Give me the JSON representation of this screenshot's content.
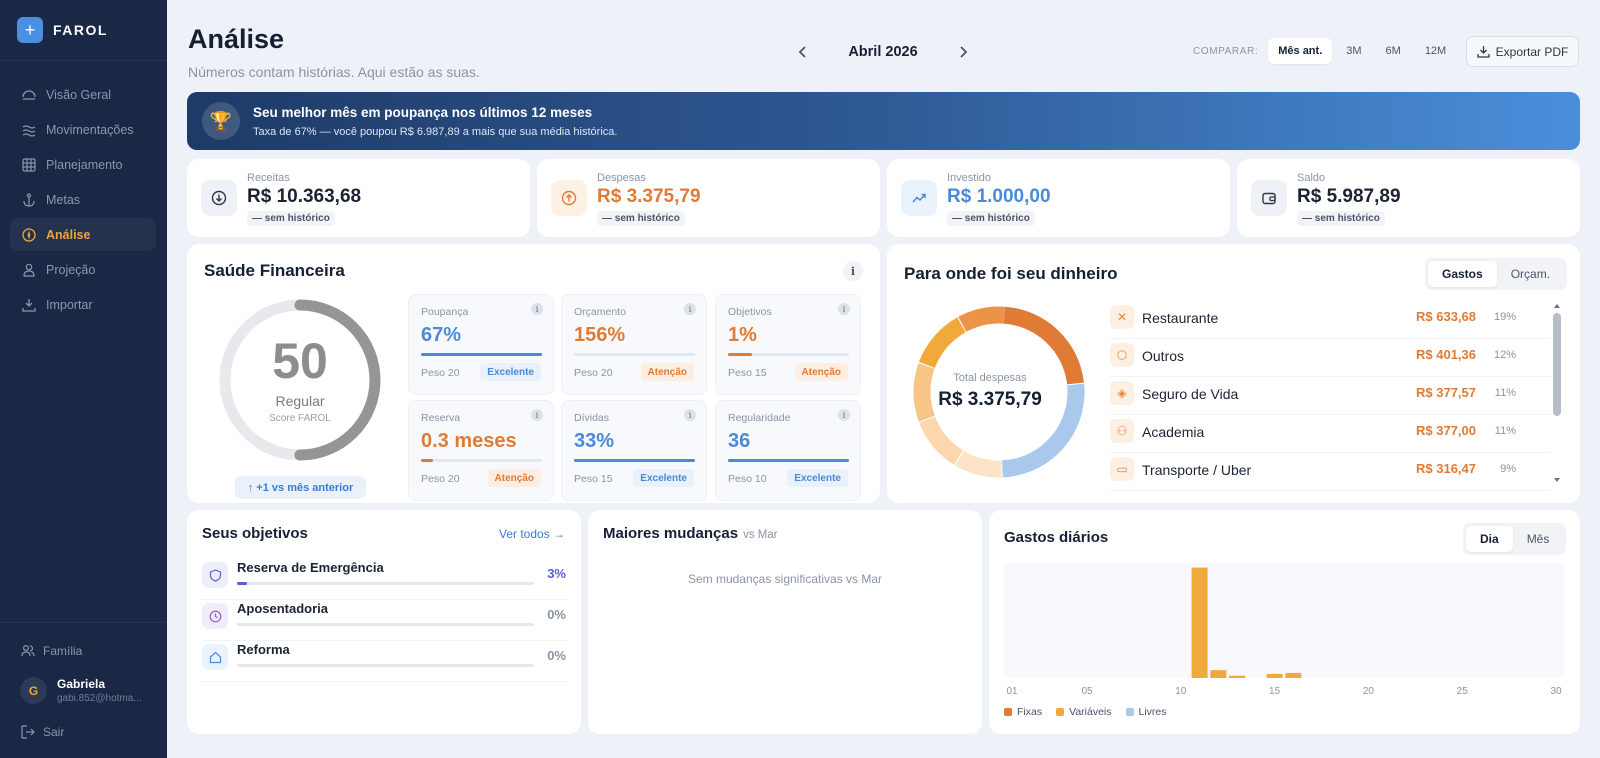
{
  "app": {
    "name": "FAROL"
  },
  "sidebar": {
    "items": [
      {
        "label": "Visão Geral",
        "icon": "dashboard-icon"
      },
      {
        "label": "Movimentações",
        "icon": "waves-icon"
      },
      {
        "label": "Planejamento",
        "icon": "grid-icon"
      },
      {
        "label": "Metas",
        "icon": "anchor-icon"
      },
      {
        "label": "Análise",
        "icon": "compass-icon",
        "active": true
      },
      {
        "label": "Projeção",
        "icon": "person-icon"
      },
      {
        "label": "Importar",
        "icon": "import-icon"
      }
    ],
    "family_label": "Família",
    "user": {
      "initial": "G",
      "name": "Gabriela",
      "email": "gabi.852@hotma..."
    },
    "logout_label": "Sair"
  },
  "header": {
    "title": "Análise",
    "subtitle": "Números contam histórias. Aqui estão as suas.",
    "month": "Abril 2026",
    "compare_label": "COMPARAR:",
    "compare_options": [
      "Mês ant.",
      "3M",
      "6M",
      "12M"
    ],
    "compare_selected": "Mês ant.",
    "export_label": "Exportar PDF"
  },
  "banner": {
    "title": "Seu melhor mês em poupança nos últimos 12 meses",
    "subtitle": "Taxa de 67% — você poupou R$ 6.987,89 a mais que sua média histórica."
  },
  "stats": [
    {
      "label": "Receitas",
      "value": "R$ 10.363,68",
      "history": "— sem histórico",
      "color": "#1b2333"
    },
    {
      "label": "Despesas",
      "value": "R$ 3.375,79",
      "history": "— sem histórico",
      "color": "#e07b36"
    },
    {
      "label": "Investido",
      "value": "R$ 1.000,00",
      "history": "— sem histórico",
      "color": "#4a8ad6"
    },
    {
      "label": "Saldo",
      "value": "R$ 5.987,89",
      "history": "— sem histórico",
      "color": "#1b2333"
    }
  ],
  "health": {
    "title": "Saúde Financeira",
    "info": "i",
    "score": "50",
    "score_fraction": 0.5,
    "score_label": "Regular",
    "score_sub": "Score FAROL",
    "diff": "↑ +1 vs mês anterior",
    "metrics": [
      {
        "label": "Poupança",
        "value": "67%",
        "weight": "Peso 20",
        "badge": "Excelente",
        "status": "good",
        "progress": 1.0
      },
      {
        "label": "Orçamento",
        "value": "156%",
        "weight": "Peso 20",
        "badge": "Atenção",
        "status": "warn",
        "progress": 0.0
      },
      {
        "label": "Objetivos",
        "value": "1%",
        "weight": "Peso 15",
        "badge": "Atenção",
        "status": "warn",
        "progress": 0.2
      },
      {
        "label": "Reserva",
        "value": "0.3 meses",
        "weight": "Peso 20",
        "badge": "Atenção",
        "status": "warn",
        "progress": 0.1
      },
      {
        "label": "Dívidas",
        "value": "33%",
        "weight": "Peso 15",
        "badge": "Excelente",
        "status": "good",
        "progress": 1.0
      },
      {
        "label": "Regularidade",
        "value": "36",
        "weight": "Peso 10",
        "badge": "Excelente",
        "status": "good",
        "progress": 1.0
      }
    ]
  },
  "spending": {
    "title": "Para onde foi seu dinheiro",
    "tabs": [
      "Gastos",
      "Orçam."
    ],
    "tab_selected": "Gastos",
    "total_label": "Total despesas",
    "total_value": "R$ 3.375,79",
    "categories": [
      {
        "name": "Restaurante",
        "value": "R$ 633,68",
        "pct": "19%",
        "icon": "utensils-icon"
      },
      {
        "name": "Outros",
        "value": "R$ 401,36",
        "pct": "12%",
        "icon": "box-icon"
      },
      {
        "name": "Seguro de Vida",
        "value": "R$ 377,57",
        "pct": "11%",
        "icon": "shield-icon"
      },
      {
        "name": "Academia",
        "value": "R$ 377,00",
        "pct": "11%",
        "icon": "dumbbell-icon"
      },
      {
        "name": "Transporte / Uber",
        "value": "R$ 316,47",
        "pct": "9%",
        "icon": "car-icon"
      }
    ]
  },
  "objectives": {
    "title": "Seus objetivos",
    "see_all": "Ver todos →",
    "items": [
      {
        "name": "Reserva de Emergência",
        "pct": "3%",
        "progress": 0.03,
        "icon": "shield-icon",
        "color": "#5b5fd6"
      },
      {
        "name": "Aposentadoria",
        "pct": "0%",
        "progress": 0.0,
        "icon": "clock-icon",
        "color": "#8a94a6"
      },
      {
        "name": "Reforma",
        "pct": "0%",
        "progress": 0.0,
        "icon": "home-icon",
        "color": "#8a94a6"
      }
    ]
  },
  "changes": {
    "title": "Maiores mudanças",
    "suffix": "vs Mar",
    "empty": "Sem mudanças significativas vs Mar"
  },
  "daily": {
    "title": "Gastos diários",
    "tabs": [
      "Dia",
      "Mês"
    ],
    "tab_selected": "Dia",
    "legend": [
      {
        "label": "Fixas",
        "color": "#e07b36"
      },
      {
        "label": "Variáveis",
        "color": "#f2a93b"
      },
      {
        "label": "Livres",
        "color": "#a9c9ec"
      }
    ]
  },
  "chart_data": {
    "type": "bar",
    "x_ticks": [
      "01",
      "05",
      "10",
      "15",
      "20",
      "25",
      "30"
    ],
    "x": [
      11,
      12,
      13,
      15,
      16
    ],
    "series": [
      {
        "name": "Variáveis",
        "values": [
          1200,
          85,
          25,
          45,
          55
        ],
        "color": "#f2a93b"
      }
    ],
    "xlim": [
      1,
      30
    ],
    "ylim": [
      0,
      1250
    ],
    "grid": false
  },
  "colors": {
    "sidebar_bg": "#1a2745",
    "accent": "#f0a43a",
    "blue": "#4a8ad6",
    "orange": "#e07b36",
    "score_ring": "#959595"
  }
}
